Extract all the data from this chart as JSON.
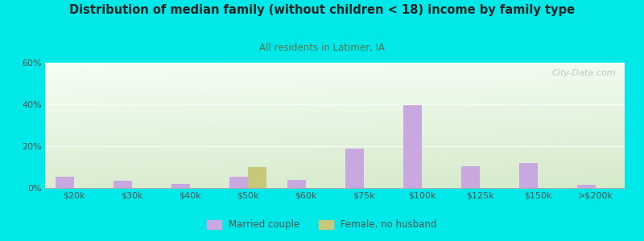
{
  "title": "Distribution of median family (without children < 18) income by family type",
  "subtitle": "All residents in Latimer, IA",
  "categories": [
    "$20k",
    "$30k",
    "$40k",
    "$50k",
    "$60k",
    "$75k",
    "$100k",
    "$125k",
    "$150k",
    ">$200k"
  ],
  "married_couple": [
    5.5,
    3.5,
    2.0,
    5.5,
    4.0,
    19.0,
    39.5,
    10.5,
    12.0,
    1.5
  ],
  "female_no_husband": [
    0,
    0,
    0,
    10.0,
    0,
    0,
    0,
    0,
    0,
    0
  ],
  "married_color": "#c9a8e0",
  "female_color": "#c8c87a",
  "background_color": "#00e8e8",
  "plot_bg_topleft": "#f5fff5",
  "plot_bg_bottomright": "#d8ecc8",
  "title_color": "#222222",
  "subtitle_color": "#557755",
  "axis_color": "#555555",
  "tick_color": "#555555",
  "ylim": [
    0,
    60
  ],
  "yticks": [
    0,
    20,
    40,
    60
  ],
  "bar_width": 0.32,
  "watermark": "City-Data.com"
}
